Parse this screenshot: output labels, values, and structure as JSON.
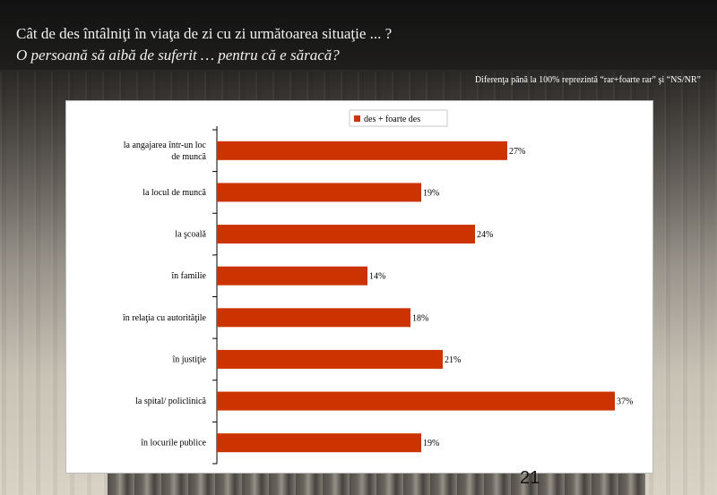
{
  "header": {
    "title_line1": "Cât de des întâlniţi în viaţa de zi cu zi următoarea situaţie ... ?",
    "title_line2": "O persoană să aibă de suferit … pentru că e săracă?"
  },
  "note": "Diferenţa până la 100% reprezintă  “rar+foarte rar” şi “NS/NR”",
  "page_number": "21",
  "colors": {
    "bar": "#cc3300",
    "axis": "#000000"
  },
  "chart_data": {
    "type": "bar",
    "orientation": "horizontal",
    "legend": "top-center",
    "series": [
      {
        "name": "des + foarte des",
        "values": [
          27,
          19,
          24,
          14,
          18,
          21,
          37,
          19
        ]
      }
    ],
    "categories": [
      "la angajarea într-un loc de muncă",
      "la locul de muncă",
      "la şcoală",
      "în familie",
      "în relaţia cu autorităţile",
      "în justiţie",
      "la spital/ policlinică",
      "în locurile publice"
    ],
    "data_labels": [
      "27%",
      "19%",
      "24%",
      "14%",
      "18%",
      "21%",
      "37%",
      "19%"
    ],
    "xlim": [
      0,
      40
    ],
    "grid": false
  }
}
